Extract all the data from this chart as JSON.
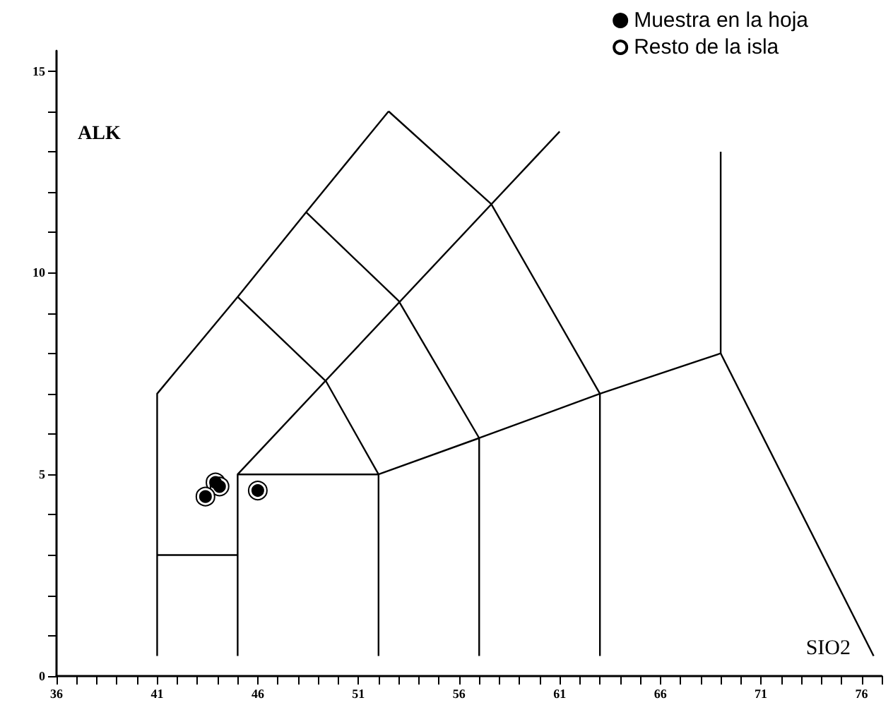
{
  "chart_data": {
    "type": "scatter",
    "xlabel": "SIO2",
    "ylabel": "ALK",
    "xlim": [
      36,
      77
    ],
    "ylim": [
      0,
      15.5
    ],
    "xticks": [
      36,
      {
        "value": 37,
        "label": null
      },
      {
        "value": 38,
        "label": null
      },
      {
        "value": 39,
        "label": null
      },
      {
        "value": 40,
        "label": null
      },
      41,
      {
        "value": 42,
        "label": null
      },
      {
        "value": 43,
        "label": null
      },
      {
        "value": 44,
        "label": null
      },
      {
        "value": 45,
        "label": null
      },
      46,
      {
        "value": 47,
        "label": null
      },
      {
        "value": 48,
        "label": null
      },
      {
        "value": 49,
        "label": null
      },
      {
        "value": 50,
        "label": null
      },
      51,
      {
        "value": 52,
        "label": null
      },
      {
        "value": 53,
        "label": null
      },
      {
        "value": 54,
        "label": null
      },
      {
        "value": 55,
        "label": null
      },
      56,
      {
        "value": 57,
        "label": null
      },
      {
        "value": 58,
        "label": null
      },
      {
        "value": 59,
        "label": null
      },
      {
        "value": 60,
        "label": null
      },
      61,
      {
        "value": 62,
        "label": null
      },
      {
        "value": 63,
        "label": null
      },
      {
        "value": 64,
        "label": null
      },
      {
        "value": 65,
        "label": null
      },
      66,
      {
        "value": 67,
        "label": null
      },
      {
        "value": 68,
        "label": null
      },
      {
        "value": 69,
        "label": null
      },
      {
        "value": 70,
        "label": null
      },
      71,
      {
        "value": 72,
        "label": null
      },
      {
        "value": 73,
        "label": null
      },
      {
        "value": 74,
        "label": null
      },
      {
        "value": 75,
        "label": null
      },
      76,
      {
        "value": 77,
        "label": null
      }
    ],
    "yticks": [
      0,
      {
        "value": 1,
        "label": null
      },
      {
        "value": 2,
        "label": null
      },
      {
        "value": 3,
        "label": null
      },
      {
        "value": 4,
        "label": null
      },
      5,
      {
        "value": 6,
        "label": null
      },
      {
        "value": 7,
        "label": null
      },
      {
        "value": 8,
        "label": null
      },
      {
        "value": 9,
        "label": null
      },
      10,
      {
        "value": 11,
        "label": null
      },
      {
        "value": 12,
        "label": null
      },
      {
        "value": 13,
        "label": null
      },
      {
        "value": 14,
        "label": null
      },
      15
    ],
    "grid": false,
    "legend": "top right",
    "marker": "circle",
    "series": [
      {
        "type": "line",
        "marker": "none",
        "color": "#000000",
        "x": [
          41,
          41,
          45,
          48.4,
          52.5
        ],
        "values": [
          0.5,
          7,
          9.4,
          11.5,
          14
        ]
      },
      {
        "type": "line",
        "marker": "none",
        "color": "#000000",
        "x": [
          45,
          45,
          61
        ],
        "values": [
          0.5,
          5,
          13.5
        ]
      },
      {
        "type": "line",
        "marker": "none",
        "color": "#000000",
        "x": [
          45,
          52,
          52
        ],
        "values": [
          5,
          5,
          0.5
        ]
      },
      {
        "type": "line",
        "marker": "none",
        "color": "#000000",
        "x": [
          52,
          57,
          57
        ],
        "values": [
          5,
          5.9,
          0.5
        ]
      },
      {
        "type": "line",
        "marker": "none",
        "color": "#000000",
        "x": [
          57,
          63,
          63
        ],
        "values": [
          5.9,
          7,
          0.5
        ]
      },
      {
        "type": "line",
        "marker": "none",
        "color": "#000000",
        "x": [
          63,
          69,
          69
        ],
        "values": [
          7,
          8,
          13
        ]
      },
      {
        "type": "line",
        "marker": "none",
        "color": "#000000",
        "x": [
          69,
          76.6
        ],
        "values": [
          8,
          0.5
        ]
      },
      {
        "type": "line",
        "marker": "none",
        "color": "#000000",
        "x": [
          45,
          49.4,
          52
        ],
        "values": [
          9.4,
          7.3,
          5
        ]
      },
      {
        "type": "line",
        "marker": "none",
        "color": "#000000",
        "x": [
          48.4,
          53,
          57
        ],
        "values": [
          11.5,
          9.3,
          5.9
        ]
      },
      {
        "type": "line",
        "marker": "none",
        "color": "#000000",
        "x": [
          52.5,
          57.6,
          63
        ],
        "values": [
          14,
          11.7,
          7
        ]
      },
      {
        "type": "line",
        "marker": "none",
        "color": "#000000",
        "x": [
          41,
          45
        ],
        "values": [
          3,
          3
        ]
      },
      {
        "name": "Resto de la isla",
        "color": "#ffffff",
        "x": [
          43.9,
          44.1,
          43.4,
          46.0
        ],
        "values": [
          4.8,
          4.7,
          4.45,
          4.6
        ]
      },
      {
        "name": "Muestra en la hoja",
        "color": "#000000",
        "x": [
          43.9,
          44.1,
          43.4,
          46.0
        ],
        "values": [
          4.8,
          4.7,
          4.45,
          4.6
        ]
      }
    ]
  }
}
